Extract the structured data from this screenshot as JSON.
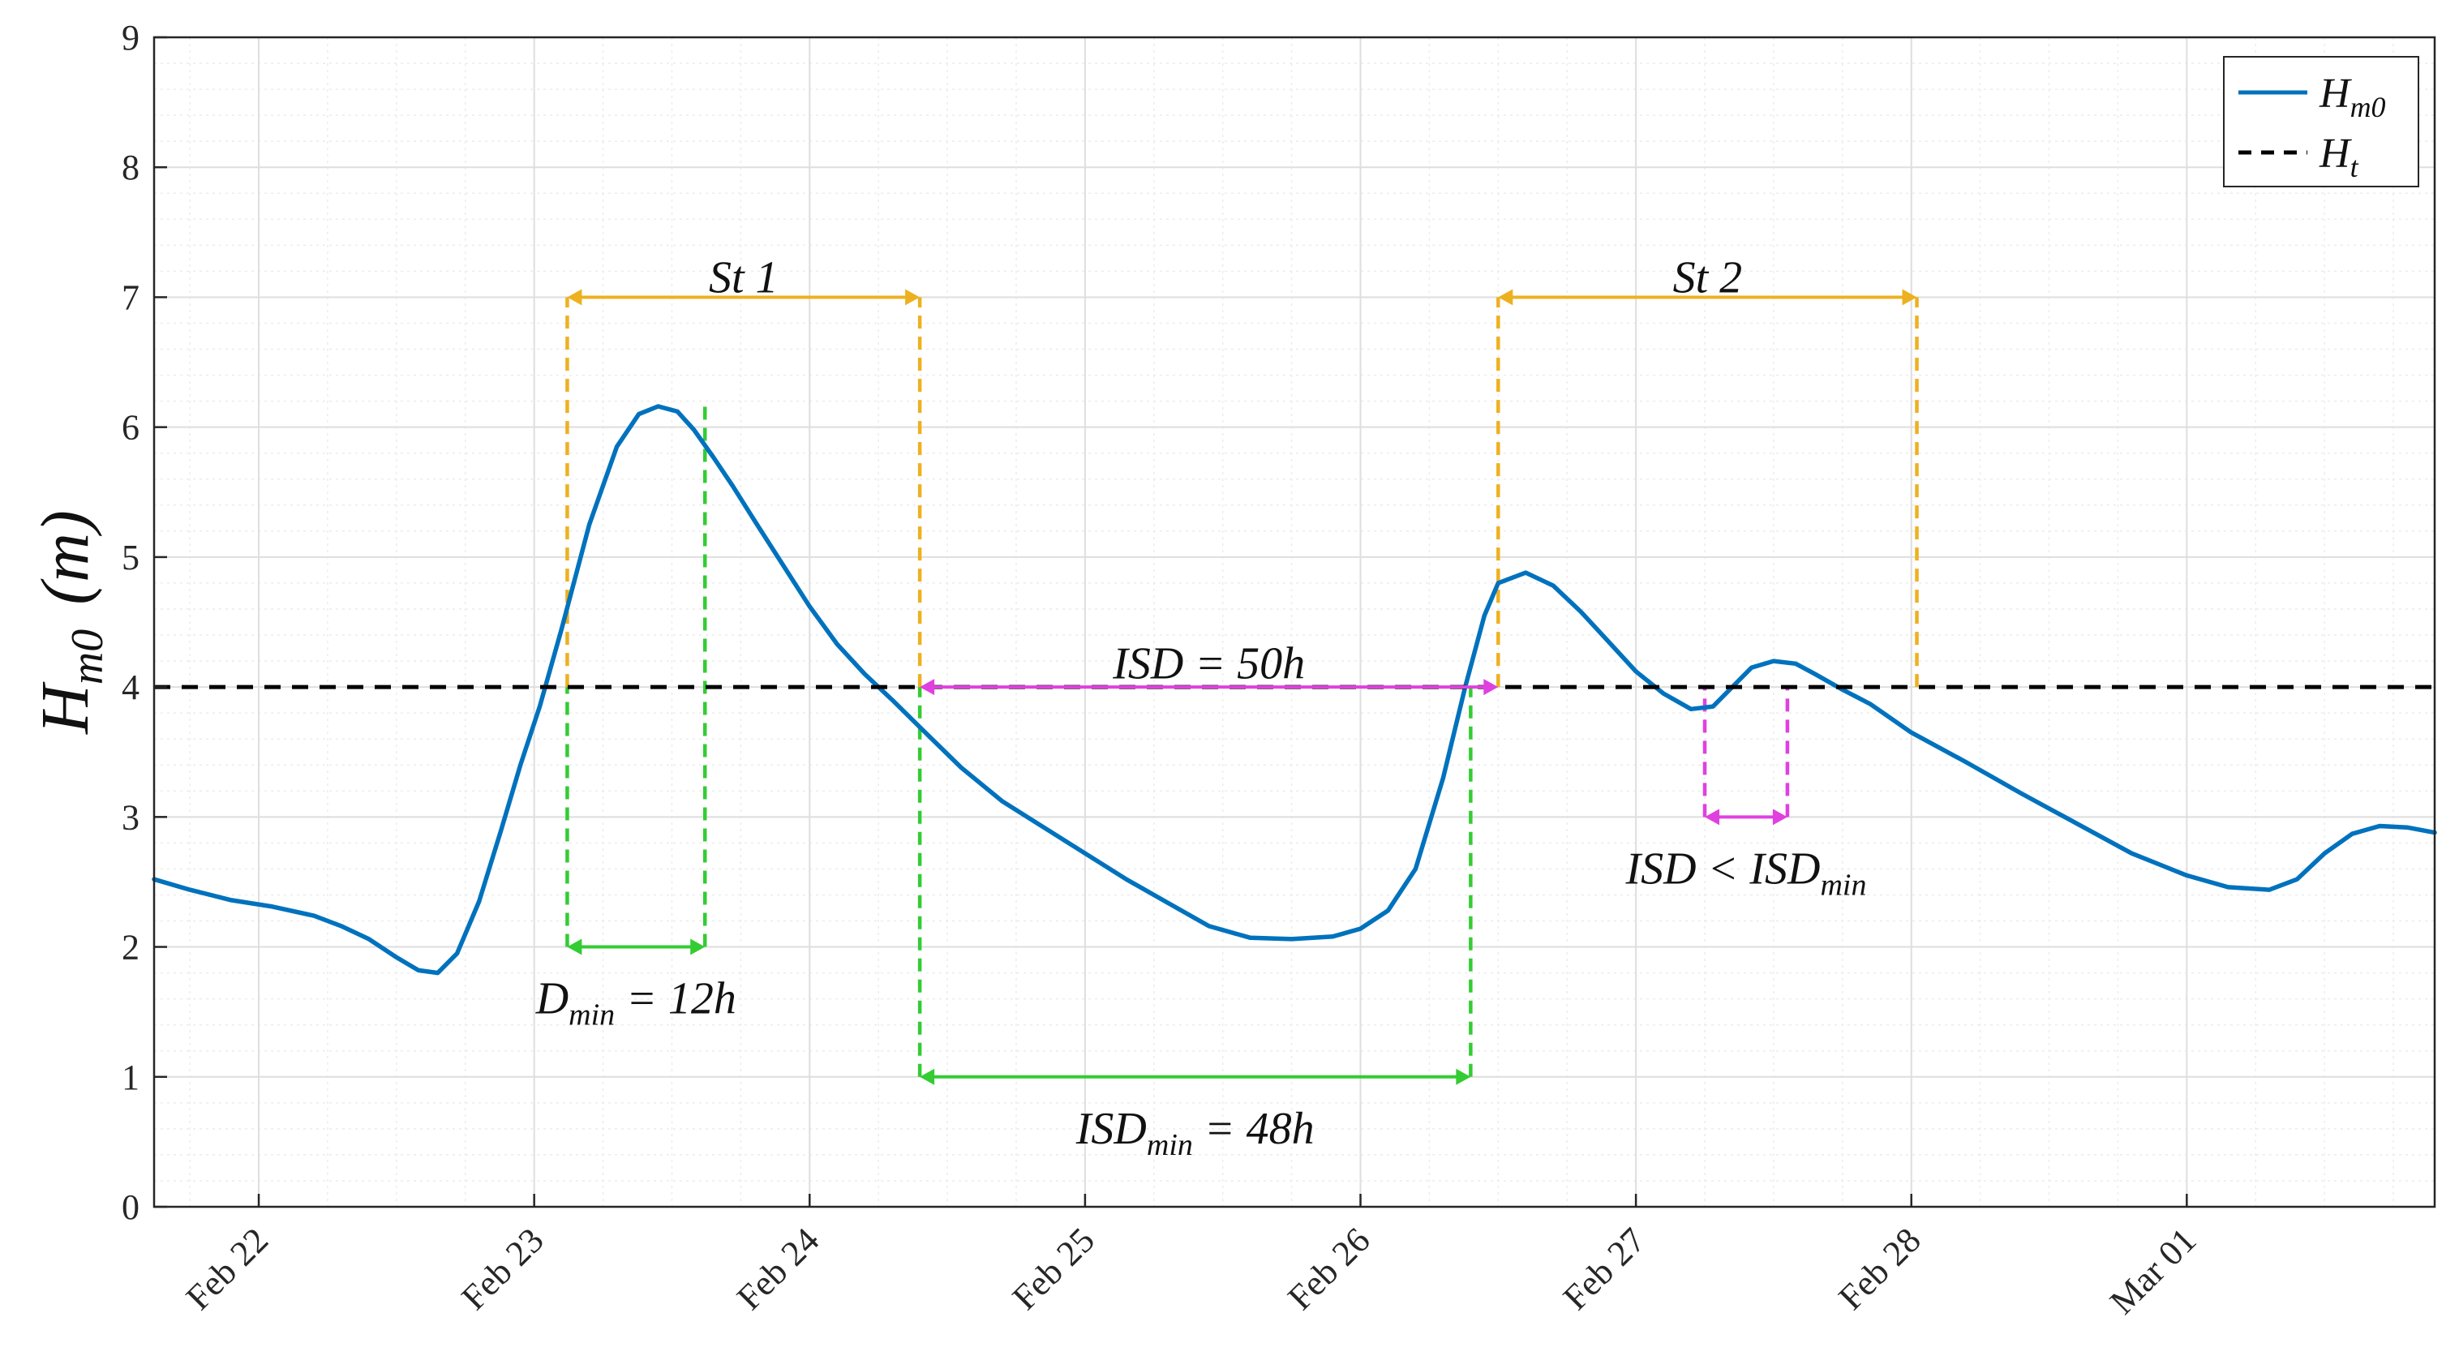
{
  "chart_data": {
    "type": "line",
    "title": "",
    "xlabel": "",
    "ylabel": "H_m0 (m)",
    "ylabel_main": "H",
    "ylabel_sub": "m0",
    "ylabel_unit": "(m)",
    "ylim": [
      0,
      9
    ],
    "xlim": [
      "2024-02-21 15:00",
      "2024-03-01 21:00"
    ],
    "xlim_days": [
      -0.38,
      7.9
    ],
    "yticks": [
      0,
      1,
      2,
      3,
      4,
      5,
      6,
      7,
      8,
      9
    ],
    "ytick_labels": [
      "0",
      "1",
      "2",
      "3",
      "4",
      "5",
      "6",
      "7",
      "8",
      "9"
    ],
    "xticks_days": [
      0,
      1,
      2,
      3,
      4,
      5,
      6,
      7
    ],
    "xtick_labels": [
      "Feb 22",
      "Feb 23",
      "Feb 24",
      "Feb 25",
      "Feb 26",
      "Feb 27",
      "Feb 28",
      "Mar 01"
    ],
    "grid": true,
    "minor_grid": true,
    "legend_position": "top-right",
    "series": [
      {
        "name": "H_m0",
        "legend_main": "H",
        "legend_sub": "m0",
        "color": "#0072BD",
        "style": "solid",
        "x": [
          -0.38,
          -0.25,
          -0.1,
          0.05,
          0.2,
          0.3,
          0.4,
          0.5,
          0.58,
          0.65,
          0.72,
          0.8,
          0.88,
          0.95,
          1.02,
          1.1,
          1.2,
          1.3,
          1.38,
          1.45,
          1.52,
          1.58,
          1.65,
          1.72,
          1.8,
          1.9,
          2.0,
          2.1,
          2.2,
          2.3,
          2.42,
          2.55,
          2.7,
          2.85,
          3.0,
          3.15,
          3.3,
          3.45,
          3.6,
          3.75,
          3.9,
          4.0,
          4.1,
          4.2,
          4.3,
          4.38,
          4.45,
          4.5,
          4.6,
          4.7,
          4.8,
          4.9,
          5.0,
          5.1,
          5.2,
          5.28,
          5.35,
          5.42,
          5.5,
          5.58,
          5.65,
          5.75,
          5.85,
          6.0,
          6.2,
          6.4,
          6.6,
          6.8,
          7.0,
          7.15,
          7.3,
          7.4,
          7.5,
          7.6,
          7.7,
          7.8,
          7.9
        ],
        "values": [
          2.52,
          2.44,
          2.36,
          2.31,
          2.24,
          2.16,
          2.06,
          1.92,
          1.82,
          1.8,
          1.95,
          2.35,
          2.9,
          3.4,
          3.85,
          4.45,
          5.25,
          5.85,
          6.1,
          6.16,
          6.12,
          5.98,
          5.77,
          5.55,
          5.28,
          4.95,
          4.62,
          4.33,
          4.1,
          3.9,
          3.65,
          3.38,
          3.12,
          2.92,
          2.72,
          2.52,
          2.34,
          2.16,
          2.07,
          2.06,
          2.08,
          2.14,
          2.28,
          2.6,
          3.3,
          4.0,
          4.55,
          4.8,
          4.88,
          4.78,
          4.58,
          4.35,
          4.12,
          3.95,
          3.83,
          3.85,
          4.0,
          4.15,
          4.2,
          4.18,
          4.1,
          3.98,
          3.87,
          3.65,
          3.42,
          3.18,
          2.95,
          2.72,
          2.55,
          2.46,
          2.44,
          2.52,
          2.72,
          2.87,
          2.93,
          2.92,
          2.88
        ]
      },
      {
        "name": "H_t",
        "legend_main": "H",
        "legend_sub": "t",
        "color": "#000000",
        "style": "dashed",
        "x": [
          -0.38,
          7.9
        ],
        "values": [
          4,
          4
        ]
      }
    ],
    "annotations": [
      {
        "id": "st1",
        "text": "St 1",
        "color": "#EDB120",
        "arrow_x": [
          1.12,
          2.4
        ],
        "arrow_y": 7,
        "drop_lines": [
          [
            1.12,
            4,
            7
          ],
          [
            2.4,
            4,
            7
          ]
        ],
        "label_x": 1.76,
        "label_y": 7.15
      },
      {
        "id": "st2",
        "text": "St 2",
        "color": "#EDB120",
        "arrow_x": [
          4.5,
          6.02
        ],
        "arrow_y": 7,
        "drop_lines": [
          [
            4.5,
            4,
            7
          ],
          [
            6.02,
            4,
            7
          ]
        ],
        "label_x": 5.26,
        "label_y": 7.15
      },
      {
        "id": "dmin",
        "main": "D",
        "sub": "min",
        "rest": " = 12h",
        "color": "#33CC33",
        "arrow_x": [
          1.12,
          1.62
        ],
        "arrow_y": 2,
        "drop_lines": [
          [
            1.12,
            2,
            4
          ],
          [
            1.62,
            2,
            6.16
          ]
        ],
        "label_x": 1.37,
        "label_y": 1.6
      },
      {
        "id": "isdmin",
        "main": "ISD",
        "sub": "min",
        "rest": " = 48h",
        "color": "#33CC33",
        "arrow_x": [
          2.4,
          4.4
        ],
        "arrow_y": 1,
        "drop_lines": [
          [
            2.4,
            1,
            4
          ],
          [
            4.4,
            1,
            4
          ]
        ],
        "label_x": 3.4,
        "label_y": 0.6
      },
      {
        "id": "isd50",
        "text": "ISD = 50h",
        "color": "#E040E0",
        "arrow_x": [
          2.4,
          4.5
        ],
        "arrow_y": 4,
        "drop_lines": [],
        "label_x": 3.45,
        "label_y": 4.18
      },
      {
        "id": "isdless",
        "pre": "ISD < ",
        "main": "ISD",
        "sub": "min",
        "color": "#E040E0",
        "arrow_x": [
          5.25,
          5.55
        ],
        "arrow_y": 3,
        "drop_lines": [
          [
            5.25,
            3,
            4
          ],
          [
            5.55,
            3,
            4
          ]
        ],
        "label_x": 5.4,
        "label_y": 2.6
      }
    ]
  }
}
